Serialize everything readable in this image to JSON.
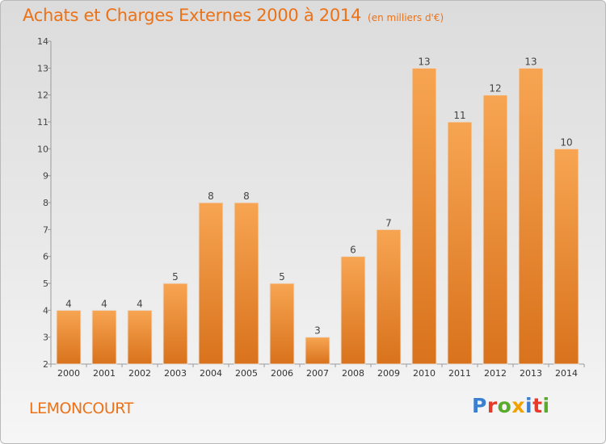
{
  "title": "Achats et Charges Externes 2000 à 2014",
  "subtitle": "(en milliers d'€)",
  "town": "LEMONCOURT",
  "logo": {
    "text": "Proxiti",
    "letters": [
      {
        "ch": "P",
        "color": "#3a7fd0"
      },
      {
        "ch": "r",
        "color": "#e83a2a"
      },
      {
        "ch": "o",
        "color": "#5aaa2c"
      },
      {
        "ch": "x",
        "color": "#f0a300"
      },
      {
        "ch": "i",
        "color": "#3a7fd0"
      },
      {
        "ch": "t",
        "color": "#e83a2a"
      },
      {
        "ch": "i",
        "color": "#5aaa2c"
      }
    ]
  },
  "colors": {
    "accent": "#ec7218",
    "bar_light": "#f7a552",
    "bar_dark": "#d9721c"
  },
  "chart_data": {
    "type": "bar",
    "categories": [
      "2000",
      "2001",
      "2002",
      "2003",
      "2004",
      "2005",
      "2006",
      "2007",
      "2008",
      "2009",
      "2010",
      "2011",
      "2012",
      "2013",
      "2014"
    ],
    "values": [
      4,
      4,
      4,
      5,
      8,
      8,
      5,
      3,
      6,
      7,
      13,
      11,
      12,
      13,
      10
    ],
    "ylim": [
      2,
      14
    ],
    "yticks": [
      2,
      3,
      4,
      5,
      6,
      7,
      8,
      9,
      10,
      11,
      12,
      13,
      14
    ],
    "grid": false,
    "legend": "none"
  }
}
